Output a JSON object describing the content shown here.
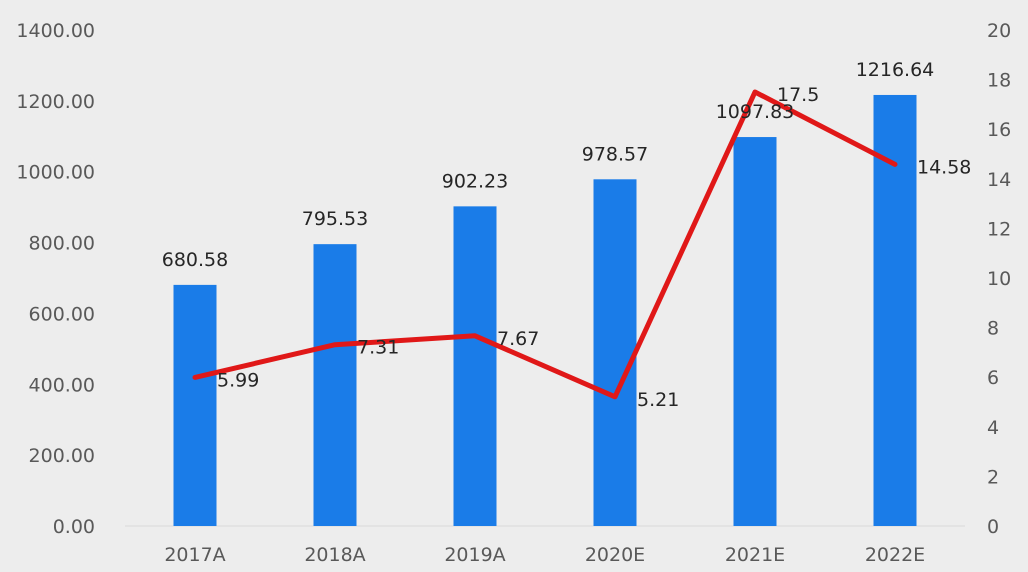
{
  "chart_data": {
    "type": "bar+line",
    "categories": [
      "2017A",
      "2018A",
      "2019A",
      "2020E",
      "2021E",
      "2022E"
    ],
    "series": [
      {
        "type": "bar",
        "axis": "left",
        "values": [
          680.58,
          795.53,
          902.23,
          978.57,
          1097.83,
          1216.64
        ],
        "labels": [
          "680.58",
          "795.53",
          "902.23",
          "978.57",
          "1097.83",
          "1216.64"
        ],
        "color": "#1a7ce8"
      },
      {
        "type": "line",
        "axis": "right",
        "values": [
          5.99,
          7.31,
          7.67,
          5.21,
          17.5,
          14.58
        ],
        "labels": [
          "5.99",
          "7.31",
          "7.67",
          "5.21",
          "17.5",
          "14.58"
        ],
        "color": "#e01818"
      }
    ],
    "y_left": {
      "range": [
        0,
        1400
      ],
      "ticks": [
        "0.00",
        "200.00",
        "400.00",
        "600.00",
        "800.00",
        "1000.00",
        "1200.00",
        "1400.00"
      ]
    },
    "y_right": {
      "range": [
        0,
        20
      ],
      "ticks": [
        "0",
        "2",
        "4",
        "6",
        "8",
        "10",
        "12",
        "14",
        "16",
        "18",
        "20"
      ]
    },
    "title": "",
    "xlabel": "",
    "ylabel": "",
    "grid": false,
    "legend": "none",
    "background": "#ededed",
    "axis_line_color": "#d9d9d9"
  }
}
